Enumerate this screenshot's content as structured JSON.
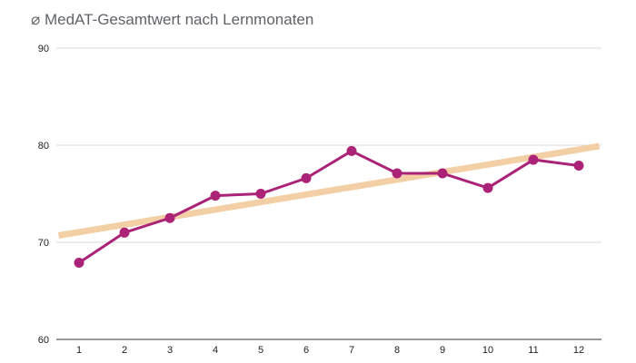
{
  "chart_data": {
    "type": "line",
    "title": "⌀ MedAT-Gesamtwert nach Lernmonaten",
    "xlabel": "",
    "ylabel": "",
    "categories": [
      "1",
      "2",
      "3",
      "4",
      "5",
      "6",
      "7",
      "8",
      "9",
      "10",
      "11",
      "12"
    ],
    "series": [
      {
        "values": [
          67.9,
          71.0,
          72.5,
          74.8,
          75.0,
          76.6,
          79.4,
          77.1,
          77.1,
          75.6,
          78.5,
          77.9
        ],
        "color": "#aa2377"
      }
    ],
    "trendline": {
      "x": [
        0.55,
        12.45
      ],
      "y": [
        70.7,
        79.9
      ],
      "color": "#f3cfa5"
    },
    "ylim": [
      60,
      90
    ],
    "yticks": [
      "60",
      "70",
      "80",
      "90"
    ],
    "grid": true,
    "legend": "none"
  }
}
